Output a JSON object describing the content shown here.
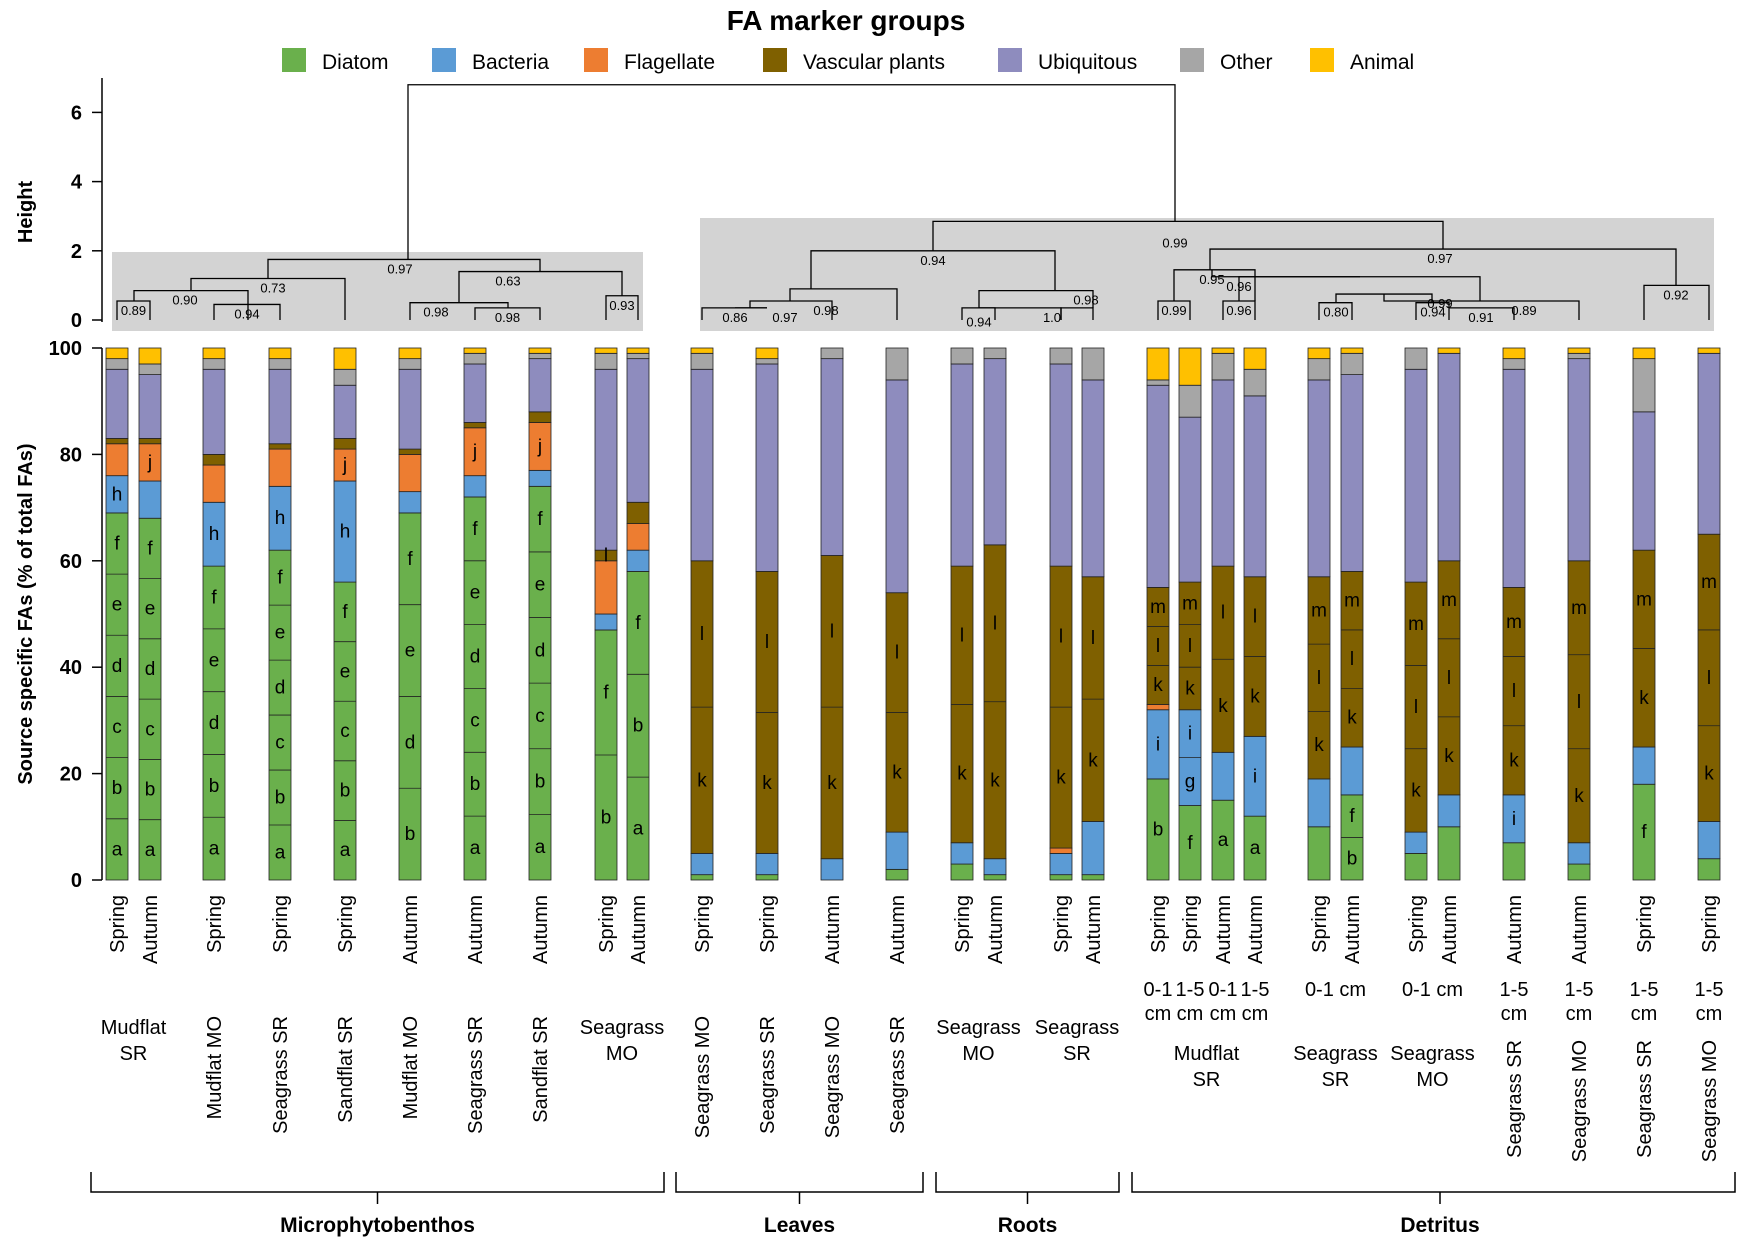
{
  "chart_data": {
    "type": "bar",
    "title": "FA marker groups",
    "ylabel": "Source specific FAs (% of total FAs)",
    "ylim": [
      0,
      100
    ],
    "yticks": [
      "0",
      "20",
      "40",
      "60",
      "80",
      "100"
    ],
    "legend": {
      "placement": "top",
      "items": [
        {
          "name": "Diatom",
          "color": "#6ab04c"
        },
        {
          "name": "Bacteria",
          "color": "#5b9bd5"
        },
        {
          "name": "Flagellate",
          "color": "#ed7d31"
        },
        {
          "name": "Vascular plants",
          "color": "#7f6000"
        },
        {
          "name": "Ubiquitous",
          "color": "#8e8cbe"
        },
        {
          "name": "Other",
          "color": "#a6a6a6"
        },
        {
          "name": "Animal",
          "color": "#ffc000"
        }
      ]
    },
    "dendrogram": {
      "ylabel": "Height",
      "yticks": [
        "0",
        "2",
        "4",
        "6"
      ],
      "root_height": 6.8,
      "labels": [
        "0.89",
        "0.90",
        "0.94",
        "0.73",
        "0.97",
        "0.98",
        "0.98",
        "0.63",
        "0.93",
        "0.86",
        "0.97",
        "0.98",
        "0.94",
        "0.94",
        "1.0",
        "0.98",
        "0.99",
        "0.99",
        "0.96",
        "0.95",
        "0.80",
        "0.94",
        "0.91",
        "0.99",
        "0.89",
        "0.96",
        "0.97",
        "0.92"
      ]
    },
    "series_order": [
      "Diatom",
      "Bacteria",
      "Flagellate",
      "Vascular plants",
      "Ubiquitous",
      "Other",
      "Animal"
    ],
    "bars": [
      {
        "season": "Spring",
        "values": [
          69,
          7,
          6,
          1,
          13,
          2,
          2
        ],
        "letters": [
          "a",
          "b",
          "c",
          "d",
          "e",
          "f",
          "h"
        ]
      },
      {
        "season": "Autumn",
        "values": [
          68,
          7,
          7,
          1,
          12,
          2,
          3
        ],
        "letters": [
          "a",
          "b",
          "c",
          "d",
          "e",
          "f",
          "j"
        ]
      },
      {
        "season": "Spring",
        "values": [
          59,
          12,
          7,
          2,
          16,
          2,
          2
        ],
        "letters": [
          "a",
          "b",
          "d",
          "e",
          "f",
          "h"
        ]
      },
      {
        "season": "Spring",
        "values": [
          62,
          12,
          7,
          1,
          14,
          2,
          2
        ],
        "letters": [
          "a",
          "b",
          "c",
          "d",
          "e",
          "f",
          "h"
        ]
      },
      {
        "season": "Spring",
        "values": [
          56,
          19,
          6,
          2,
          10,
          3,
          4
        ],
        "letters": [
          "a",
          "b",
          "c",
          "e",
          "f",
          "h",
          "j"
        ]
      },
      {
        "season": "Autumn",
        "values": [
          69,
          4,
          7,
          1,
          15,
          2,
          2
        ],
        "letters": [
          "b",
          "d",
          "e",
          "f"
        ]
      },
      {
        "season": "Autumn",
        "values": [
          72,
          4,
          9,
          1,
          11,
          2,
          1
        ],
        "letters": [
          "a",
          "b",
          "c",
          "d",
          "e",
          "f",
          "j"
        ]
      },
      {
        "season": "Autumn",
        "values": [
          74,
          3,
          9,
          2,
          10,
          1,
          1
        ],
        "letters": [
          "a",
          "b",
          "c",
          "d",
          "e",
          "f",
          "j"
        ]
      },
      {
        "season": "Spring",
        "values": [
          47,
          3,
          10,
          2,
          34,
          3,
          1
        ],
        "letters": [
          "b",
          "f",
          "l"
        ]
      },
      {
        "season": "Autumn",
        "values": [
          58,
          4,
          5,
          4,
          27,
          1,
          1
        ],
        "letters": [
          "a",
          "b",
          "f"
        ]
      },
      {
        "season": "Spring",
        "values": [
          1,
          4,
          0,
          55,
          36,
          3,
          1
        ],
        "letters": [
          "k",
          "l"
        ]
      },
      {
        "season": "Spring",
        "values": [
          1,
          4,
          0,
          53,
          39,
          1,
          2
        ],
        "letters": [
          "k",
          "l"
        ]
      },
      {
        "season": "Autumn",
        "values": [
          0,
          4,
          0,
          57,
          37,
          2,
          0
        ],
        "letters": [
          "k",
          "l"
        ]
      },
      {
        "season": "Autumn",
        "values": [
          2,
          7,
          0,
          45,
          40,
          6,
          0
        ],
        "letters": [
          "k",
          "l"
        ]
      },
      {
        "season": "Spring",
        "values": [
          3,
          4,
          0,
          52,
          38,
          3,
          0
        ],
        "letters": [
          "k",
          "l"
        ]
      },
      {
        "season": "Autumn",
        "values": [
          1,
          3,
          0,
          59,
          35,
          2,
          0
        ],
        "letters": [
          "k",
          "l"
        ]
      },
      {
        "season": "Spring",
        "values": [
          1,
          4,
          1,
          53,
          38,
          3,
          0
        ],
        "letters": [
          "k",
          "l"
        ]
      },
      {
        "season": "Autumn",
        "values": [
          1,
          10,
          0,
          46,
          37,
          6,
          0
        ],
        "letters": [
          "k",
          "l"
        ]
      },
      {
        "season": "Spring",
        "values": [
          19,
          13,
          1,
          22,
          38,
          1,
          6
        ],
        "letters": [
          "b",
          "i",
          "k",
          "l",
          "m"
        ]
      },
      {
        "season": "Spring",
        "values": [
          14,
          18,
          0,
          24,
          31,
          6,
          7
        ],
        "letters": [
          "f",
          "g",
          "i",
          "k",
          "l",
          "m"
        ]
      },
      {
        "season": "Autumn",
        "values": [
          15,
          9,
          0,
          35,
          35,
          5,
          1
        ],
        "letters": [
          "a",
          "k",
          "l"
        ]
      },
      {
        "season": "Autumn",
        "values": [
          12,
          15,
          0,
          30,
          34,
          5,
          4
        ],
        "letters": [
          "a",
          "i",
          "k",
          "l"
        ]
      },
      {
        "season": "Spring",
        "values": [
          10,
          9,
          0,
          38,
          37,
          4,
          2
        ],
        "letters": [
          "k",
          "l",
          "m"
        ]
      },
      {
        "season": "Autumn",
        "values": [
          16,
          9,
          0,
          33,
          37,
          4,
          1
        ],
        "letters": [
          "b",
          "f",
          "k",
          "l",
          "m"
        ]
      },
      {
        "season": "Spring",
        "values": [
          5,
          4,
          0,
          47,
          40,
          4,
          0
        ],
        "letters": [
          "k",
          "l",
          "m"
        ]
      },
      {
        "season": "Autumn",
        "values": [
          10,
          6,
          0,
          44,
          39,
          0,
          1
        ],
        "letters": [
          "k",
          "l",
          "m"
        ]
      },
      {
        "season": "Autumn",
        "values": [
          7,
          9,
          0,
          39,
          41,
          2,
          2
        ],
        "letters": [
          "i",
          "k",
          "l",
          "m"
        ]
      },
      {
        "season": "Autumn",
        "values": [
          3,
          4,
          0,
          53,
          38,
          1,
          1
        ],
        "letters": [
          "k",
          "l",
          "m"
        ]
      },
      {
        "season": "Spring",
        "values": [
          18,
          7,
          0,
          37,
          26,
          10,
          2
        ],
        "letters": [
          "f",
          "k",
          "m"
        ]
      },
      {
        "season": "Spring",
        "values": [
          4,
          7,
          0,
          54,
          34,
          0,
          1
        ],
        "letters": [
          "k",
          "l",
          "m"
        ]
      }
    ],
    "depth_labels": [
      {
        "text": "0-1\ncm",
        "bars": [
          18
        ]
      },
      {
        "text": "1-5\ncm",
        "bars": [
          19
        ]
      },
      {
        "text": "0-1\ncm",
        "bars": [
          20
        ]
      },
      {
        "text": "1-5\ncm",
        "bars": [
          21
        ]
      },
      {
        "text": "0-1 cm",
        "bars": [
          22,
          23
        ]
      },
      {
        "text": "0-1 cm",
        "bars": [
          24,
          25
        ]
      },
      {
        "text": "1-5\ncm",
        "bars": [
          26
        ]
      },
      {
        "text": "1-5\ncm",
        "bars": [
          27
        ]
      },
      {
        "text": "1-5\ncm",
        "bars": [
          28
        ]
      },
      {
        "text": "1-5\ncm",
        "bars": [
          29
        ]
      }
    ],
    "site_labels": [
      {
        "text": "Mudflat\nSR",
        "bars": [
          0,
          1
        ],
        "orient": "h"
      },
      {
        "text": "Mudflat MO",
        "bars": [
          2
        ],
        "orient": "v"
      },
      {
        "text": "Seagrass SR",
        "bars": [
          3
        ],
        "orient": "v"
      },
      {
        "text": "Sandflat SR",
        "bars": [
          4
        ],
        "orient": "v"
      },
      {
        "text": "Mudflat MO",
        "bars": [
          5
        ],
        "orient": "v"
      },
      {
        "text": "Seagrass SR",
        "bars": [
          6
        ],
        "orient": "v"
      },
      {
        "text": "Sandflat SR",
        "bars": [
          7
        ],
        "orient": "v"
      },
      {
        "text": "Seagrass\nMO",
        "bars": [
          8,
          9
        ],
        "orient": "h"
      },
      {
        "text": "Seagrass MO",
        "bars": [
          10
        ],
        "orient": "v"
      },
      {
        "text": "Seagrass SR",
        "bars": [
          11
        ],
        "orient": "v"
      },
      {
        "text": "Seagrass MO",
        "bars": [
          12
        ],
        "orient": "v"
      },
      {
        "text": "Seagrass SR",
        "bars": [
          13
        ],
        "orient": "v"
      },
      {
        "text": "Seagrass\nMO",
        "bars": [
          14,
          15
        ],
        "orient": "h"
      },
      {
        "text": "Seagrass\nSR",
        "bars": [
          16,
          17
        ],
        "orient": "h"
      },
      {
        "text": "Mudflat\nSR",
        "bars": [
          18,
          19,
          20,
          21
        ],
        "orient": "h"
      },
      {
        "text": "Seagrass\nSR",
        "bars": [
          22,
          23
        ],
        "orient": "h"
      },
      {
        "text": "Seagrass\nMO",
        "bars": [
          24,
          25
        ],
        "orient": "h"
      },
      {
        "text": "Seagrass SR",
        "bars": [
          26
        ],
        "orient": "v"
      },
      {
        "text": "Seagrass MO",
        "bars": [
          27
        ],
        "orient": "v"
      },
      {
        "text": "Seagrass SR",
        "bars": [
          28
        ],
        "orient": "v"
      },
      {
        "text": "Seagrass MO",
        "bars": [
          29
        ],
        "orient": "v"
      }
    ],
    "groups": [
      {
        "name": "Microphytobenthos",
        "bars": [
          0,
          9
        ]
      },
      {
        "name": "Leaves",
        "bars": [
          10,
          13
        ]
      },
      {
        "name": "Roots",
        "bars": [
          14,
          17
        ]
      },
      {
        "name": "Detritus",
        "bars": [
          18,
          29
        ]
      }
    ]
  }
}
